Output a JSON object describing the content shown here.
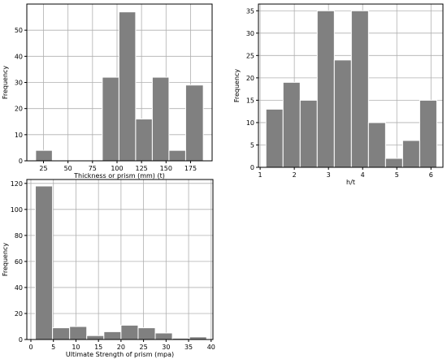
{
  "chart_data": [
    {
      "type": "bar",
      "subtype": "histogram",
      "xlabel": "Thickness or prism (mm) (t)",
      "ylabel": "Frequency",
      "xlim": [
        8,
        197
      ],
      "ylim": [
        0,
        60
      ],
      "xticks": [
        25,
        50,
        75,
        100,
        125,
        150,
        175
      ],
      "yticks": [
        0,
        10,
        20,
        30,
        40,
        50
      ],
      "grid": true,
      "bar_color": "#808080",
      "bins": [
        {
          "x0": 17,
          "x1": 34,
          "value": 4
        },
        {
          "x0": 34,
          "x1": 51,
          "value": 0
        },
        {
          "x0": 51,
          "x1": 68,
          "value": 0
        },
        {
          "x0": 68,
          "x1": 85,
          "value": 0
        },
        {
          "x0": 85,
          "x1": 102,
          "value": 32
        },
        {
          "x0": 102,
          "x1": 119,
          "value": 57
        },
        {
          "x0": 119,
          "x1": 136,
          "value": 16
        },
        {
          "x0": 136,
          "x1": 153,
          "value": 32
        },
        {
          "x0": 153,
          "x1": 170,
          "value": 4
        },
        {
          "x0": 170,
          "x1": 188,
          "value": 29
        }
      ]
    },
    {
      "type": "bar",
      "subtype": "histogram",
      "xlabel": "h/t",
      "ylabel": "Frequency",
      "xlim": [
        0.95,
        6.35
      ],
      "ylim": [
        0,
        36.5
      ],
      "xticks": [
        1,
        2,
        3,
        4,
        5,
        6
      ],
      "yticks": [
        0,
        5,
        10,
        15,
        20,
        25,
        30,
        35
      ],
      "grid": true,
      "bar_color": "#808080",
      "bins": [
        {
          "x0": 1.17,
          "x1": 1.67,
          "value": 13
        },
        {
          "x0": 1.67,
          "x1": 2.17,
          "value": 19
        },
        {
          "x0": 2.17,
          "x1": 2.67,
          "value": 15
        },
        {
          "x0": 2.67,
          "x1": 3.17,
          "value": 35
        },
        {
          "x0": 3.17,
          "x1": 3.67,
          "value": 24
        },
        {
          "x0": 3.67,
          "x1": 4.17,
          "value": 35
        },
        {
          "x0": 4.17,
          "x1": 4.67,
          "value": 10
        },
        {
          "x0": 4.67,
          "x1": 5.17,
          "value": 2
        },
        {
          "x0": 5.17,
          "x1": 5.67,
          "value": 6
        },
        {
          "x0": 5.67,
          "x1": 6.17,
          "value": 15
        }
      ]
    },
    {
      "type": "bar",
      "subtype": "histogram",
      "xlabel": "Ultimate Strength of prism (mpa)",
      "ylabel": "Frequency",
      "xlim": [
        -0.9,
        40.4
      ],
      "ylim": [
        0,
        123
      ],
      "xticks": [
        0,
        5,
        10,
        15,
        20,
        25,
        30,
        35,
        40
      ],
      "yticks": [
        0,
        20,
        40,
        60,
        80,
        100,
        120
      ],
      "grid": true,
      "bar_color": "#808080",
      "bins": [
        {
          "x0": 1.0,
          "x1": 4.8,
          "value": 118
        },
        {
          "x0": 4.8,
          "x1": 8.6,
          "value": 9
        },
        {
          "x0": 8.6,
          "x1": 12.4,
          "value": 10
        },
        {
          "x0": 12.4,
          "x1": 16.2,
          "value": 3
        },
        {
          "x0": 16.2,
          "x1": 20.0,
          "value": 6
        },
        {
          "x0": 20.0,
          "x1": 23.8,
          "value": 11
        },
        {
          "x0": 23.8,
          "x1": 27.6,
          "value": 9
        },
        {
          "x0": 27.6,
          "x1": 31.4,
          "value": 5
        },
        {
          "x0": 31.4,
          "x1": 35.2,
          "value": 1
        },
        {
          "x0": 35.2,
          "x1": 39.0,
          "value": 2
        }
      ]
    }
  ]
}
